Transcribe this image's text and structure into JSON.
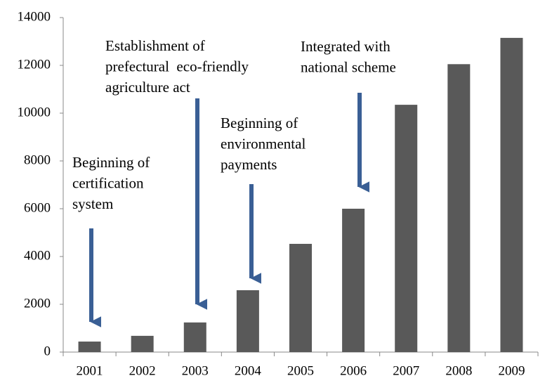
{
  "chart_data": {
    "type": "bar",
    "categories": [
      "2001",
      "2002",
      "2003",
      "2004",
      "2005",
      "2006",
      "2007",
      "2008",
      "2009"
    ],
    "values": [
      440,
      680,
      1240,
      2590,
      4530,
      6000,
      10350,
      12050,
      13150
    ],
    "color": "#595959",
    "ylim": [
      0,
      14000
    ],
    "yticks": [
      0,
      2000,
      4000,
      6000,
      8000,
      10000,
      12000,
      14000
    ],
    "annotations": [
      {
        "lines": [
          "Beginning of",
          "certification",
          "system"
        ]
      },
      {
        "lines": [
          "Establishment of",
          "prefectural  eco-friendly",
          "agriculture act"
        ]
      },
      {
        "lines": [
          "Beginning of",
          "environmental",
          "payments"
        ]
      },
      {
        "lines": [
          "Integrated with",
          "national scheme"
        ]
      }
    ]
  }
}
